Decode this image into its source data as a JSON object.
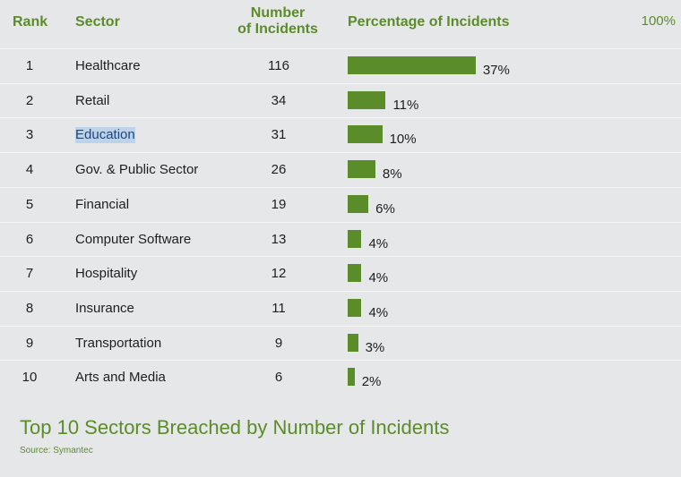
{
  "header": {
    "rank": "Rank",
    "sector": "Sector",
    "number_line1": "Number",
    "number_line2": "of Incidents",
    "percentage": "Percentage of Incidents",
    "max_label": "100%"
  },
  "highlighted_row": 3,
  "chart_data": {
    "type": "bar",
    "orientation": "horizontal",
    "title": "Top 10 Sectors Breached by Number of Incidents",
    "source": "Source: Symantec",
    "xlim": [
      0,
      100
    ],
    "unit": "%",
    "color": "#5b8c2a",
    "rows": [
      {
        "rank": "1",
        "sector": "Healthcare",
        "incidents": "116",
        "percent": 37,
        "percent_label": "37%"
      },
      {
        "rank": "2",
        "sector": "Retail",
        "incidents": "34",
        "percent": 11,
        "percent_label": "11%"
      },
      {
        "rank": "3",
        "sector": "Education",
        "incidents": "31",
        "percent": 10,
        "percent_label": "10%"
      },
      {
        "rank": "4",
        "sector": "Gov. & Public Sector",
        "incidents": "26",
        "percent": 8,
        "percent_label": "8%"
      },
      {
        "rank": "5",
        "sector": "Financial",
        "incidents": "19",
        "percent": 6,
        "percent_label": "6%"
      },
      {
        "rank": "6",
        "sector": "Computer Software",
        "incidents": "13",
        "percent": 4,
        "percent_label": "4%"
      },
      {
        "rank": "7",
        "sector": "Hospitality",
        "incidents": "12",
        "percent": 4,
        "percent_label": "4%"
      },
      {
        "rank": "8",
        "sector": "Insurance",
        "incidents": "11",
        "percent": 4,
        "percent_label": "4%"
      },
      {
        "rank": "9",
        "sector": "Transportation",
        "incidents": "9",
        "percent": 3,
        "percent_label": "3%"
      },
      {
        "rank": "10",
        "sector": "Arts and Media",
        "incidents": "6",
        "percent": 2,
        "percent_label": "2%"
      }
    ]
  }
}
